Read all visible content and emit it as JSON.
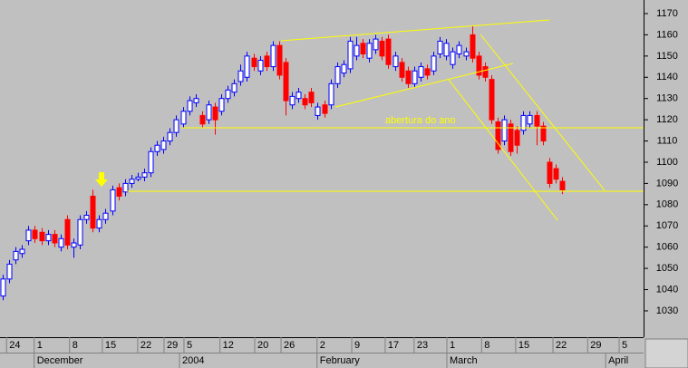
{
  "chart_data": {
    "type": "candlestick",
    "categories": [
      null,
      null,
      null,
      null,
      null,
      null,
      null,
      null,
      null,
      null,
      null,
      null,
      null,
      null,
      null,
      null,
      null,
      null,
      null,
      null,
      null,
      null,
      null,
      null,
      null,
      null,
      null,
      null,
      null,
      null,
      null,
      null,
      null,
      null,
      null,
      null,
      null,
      null,
      null,
      null,
      null,
      null,
      null,
      null,
      null,
      null,
      null,
      null,
      null,
      null,
      null,
      null,
      null,
      null,
      null,
      null,
      null,
      null,
      null,
      null,
      null,
      null,
      null,
      null,
      null,
      null,
      null,
      null,
      null,
      null,
      null,
      null,
      null,
      null,
      null,
      null,
      null,
      null,
      null,
      null,
      null,
      null,
      null,
      null,
      null,
      null,
      null,
      null
    ],
    "open": [
      1037,
      1045,
      1054,
      1057,
      1063,
      1068,
      1067,
      1063,
      1066,
      1060,
      1073,
      1060,
      1061,
      1073,
      1084,
      1069,
      1073,
      1077,
      1088,
      1086,
      1090,
      1092,
      1093,
      1095,
      1105,
      1106,
      1110,
      1114,
      1118,
      1124,
      1128,
      1122,
      1120,
      1126,
      1124,
      1130,
      1133,
      1138,
      1140,
      1149,
      1143,
      1150,
      1145,
      1155,
      1147,
      1127,
      1130,
      1130,
      1133,
      1122,
      1127,
      1127,
      1137,
      1142,
      1144,
      1150,
      1156,
      1149,
      1153,
      1157,
      1158,
      1145,
      1147,
      1143,
      1137,
      1140,
      1144,
      1143,
      1151,
      1150,
      1146,
      1151,
      1150,
      1160,
      1150,
      1145,
      1139,
      1119,
      1110,
      1118,
      1115,
      1115,
      1118,
      1122,
      1117,
      1100,
      1097,
      1091
    ],
    "high": [
      1047,
      1054,
      1060,
      1061,
      1070,
      1070,
      1069,
      1068,
      1068,
      1066,
      1075,
      1064,
      1075,
      1077,
      1087,
      1075,
      1078,
      1089,
      1090,
      1092,
      1094,
      1095,
      1097,
      1107,
      1110,
      1112,
      1116,
      1122,
      1126,
      1131,
      1132,
      1124,
      1129,
      1128,
      1132,
      1136,
      1139,
      1146,
      1152,
      1151,
      1150,
      1152,
      1157,
      1157,
      1149,
      1133,
      1135,
      1132,
      1135,
      1128,
      1129,
      1139,
      1147,
      1148,
      1159,
      1159,
      1158,
      1158,
      1160,
      1159,
      1160,
      1152,
      1149,
      1145,
      1145,
      1147,
      1146,
      1152,
      1159,
      1158,
      1154,
      1157,
      1154,
      1164,
      1152,
      1147,
      1141,
      1121,
      1122,
      1120,
      1117,
      1124,
      1124,
      1124,
      1119,
      1102,
      1099,
      1093
    ],
    "low": [
      1035,
      1043,
      1052,
      1055,
      1061,
      1062,
      1061,
      1061,
      1060,
      1058,
      1059,
      1055,
      1059,
      1071,
      1067,
      1067,
      1071,
      1075,
      1082,
      1084,
      1088,
      1091,
      1091,
      1093,
      1103,
      1104,
      1108,
      1112,
      1116,
      1122,
      1126,
      1116,
      1118,
      1113,
      1122,
      1128,
      1131,
      1136,
      1138,
      1143,
      1141,
      1143,
      1143,
      1139,
      1122,
      1125,
      1128,
      1125,
      1126,
      1120,
      1121,
      1125,
      1135,
      1140,
      1142,
      1148,
      1149,
      1147,
      1151,
      1148,
      1144,
      1143,
      1138,
      1135,
      1135,
      1138,
      1139,
      1141,
      1149,
      1148,
      1144,
      1149,
      1148,
      1147,
      1139,
      1138,
      1118,
      1104,
      1108,
      1103,
      1104,
      1113,
      1116,
      1108,
      1108,
      1088,
      1090,
      1085
    ],
    "close": [
      1045,
      1052,
      1058,
      1059,
      1068,
      1064,
      1063,
      1066,
      1062,
      1064,
      1061,
      1062,
      1073,
      1075,
      1069,
      1073,
      1076,
      1087,
      1084,
      1090,
      1092,
      1093,
      1095,
      1105,
      1108,
      1110,
      1114,
      1120,
      1124,
      1129,
      1130,
      1118,
      1127,
      1120,
      1130,
      1134,
      1137,
      1143,
      1150,
      1145,
      1148,
      1145,
      1155,
      1141,
      1129,
      1131,
      1133,
      1127,
      1128,
      1126,
      1123,
      1137,
      1145,
      1146,
      1157,
      1155,
      1151,
      1156,
      1158,
      1150,
      1146,
      1150,
      1140,
      1137,
      1143,
      1145,
      1141,
      1150,
      1157,
      1156,
      1152,
      1155,
      1152,
      1149,
      1141,
      1140,
      1120,
      1106,
      1120,
      1105,
      1108,
      1122,
      1122,
      1117,
      1110,
      1090,
      1092,
      1087
    ],
    "up_color": "#0000ff",
    "down_color": "#ff0000",
    "ylim": [
      1017.6,
      1176.4
    ],
    "yticks": [
      1030,
      1040,
      1050,
      1060,
      1070,
      1080,
      1090,
      1100,
      1110,
      1120,
      1130,
      1140,
      1150,
      1160,
      1170
    ],
    "xlim": [
      -0.42,
      99.7
    ],
    "xticks": [
      {
        "value": 0.6,
        "label": "24"
      },
      {
        "value": 4.9,
        "label": "1"
      },
      {
        "value": 10.4,
        "label": "8"
      },
      {
        "value": 15.5,
        "label": "15"
      },
      {
        "value": 21,
        "label": "22"
      },
      {
        "value": 25.1,
        "label": "29"
      },
      {
        "value": 28.2,
        "label": "5"
      },
      {
        "value": 33.8,
        "label": "12"
      },
      {
        "value": 39.2,
        "label": "20"
      },
      {
        "value": 43.3,
        "label": "26"
      },
      {
        "value": 48.9,
        "label": "2"
      },
      {
        "value": 54.3,
        "label": "9"
      },
      {
        "value": 59.5,
        "label": "17"
      },
      {
        "value": 64,
        "label": "23"
      },
      {
        "value": 69.1,
        "label": "1"
      },
      {
        "value": 74.5,
        "label": "8"
      },
      {
        "value": 79.8,
        "label": "15"
      },
      {
        "value": 85.6,
        "label": "22"
      },
      {
        "value": 91,
        "label": "29"
      },
      {
        "value": 95.9,
        "label": "5"
      }
    ],
    "month_ticks": [
      {
        "value": 4.9,
        "label": "December"
      },
      {
        "value": 27.5,
        "label": "2004"
      },
      {
        "value": 48.9,
        "label": "February"
      },
      {
        "value": 69.1,
        "label": "March"
      },
      {
        "value": 93.8,
        "label": "April"
      }
    ],
    "annotation": "abertura do ano"
  }
}
